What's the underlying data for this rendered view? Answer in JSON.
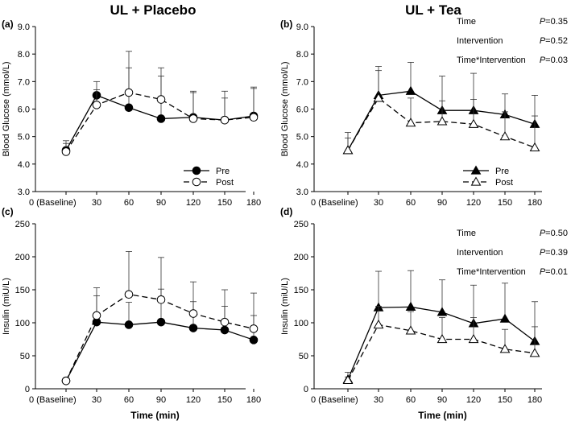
{
  "titles": {
    "left": "UL + Placebo",
    "right": "UL + Tea"
  },
  "x_categories": [
    "0 (Baseline)",
    "30",
    "60",
    "90",
    "120",
    "150",
    "180"
  ],
  "chart_data": [
    {
      "panel": "(a)",
      "type": "line",
      "ylabel": "Blood Glucose (mmol/L)",
      "xlabel": "",
      "ylim": [
        3.0,
        9.0
      ],
      "yticks": [
        "3.0",
        "4.0",
        "5.0",
        "6.0",
        "7.0",
        "8.0",
        "9.0"
      ],
      "legend": {
        "placement": "bottom-right",
        "entries": [
          "Pre",
          "Post"
        ]
      },
      "stats": [],
      "series": [
        {
          "name": "Pre",
          "marker": "filled-circle",
          "line": "solid",
          "values": [
            4.5,
            6.5,
            6.05,
            5.65,
            5.7,
            5.6,
            5.75
          ],
          "err": [
            0.25,
            0.5,
            1.45,
            1.55,
            0.95,
            0.8,
            1.05
          ]
        },
        {
          "name": "Post",
          "marker": "open-circle",
          "line": "dashed",
          "values": [
            4.45,
            6.15,
            6.6,
            6.35,
            5.65,
            5.6,
            5.7
          ],
          "err": [
            0.4,
            0.55,
            1.5,
            1.15,
            0.95,
            1.05,
            1.05
          ]
        }
      ]
    },
    {
      "panel": "(b)",
      "type": "line",
      "ylabel": "Blood Glucose (mmol/L)",
      "xlabel": "",
      "ylim": [
        3.0,
        9.0
      ],
      "yticks": [
        "3.0",
        "4.0",
        "5.0",
        "6.0",
        "7.0",
        "8.0",
        "9.0"
      ],
      "legend": {
        "placement": "bottom-right",
        "entries": [
          "Pre",
          "Post"
        ]
      },
      "stats": [
        {
          "label": "Time",
          "p_letter": "P",
          "p_value": "=0.35"
        },
        {
          "label": "Intervention",
          "p_letter": "P",
          "p_value": "=0.52"
        },
        {
          "label": "Time*Intervention",
          "p_letter": "P",
          "p_value": "=0.03"
        }
      ],
      "series": [
        {
          "name": "Pre",
          "marker": "filled-triangle",
          "line": "solid",
          "values": [
            4.5,
            6.5,
            6.65,
            5.95,
            5.95,
            5.8,
            5.45
          ],
          "err": [
            0.65,
            1.05,
            1.05,
            1.25,
            1.35,
            0.75,
            1.05
          ]
        },
        {
          "name": "Post",
          "marker": "open-triangle",
          "line": "dashed",
          "values": [
            4.5,
            6.4,
            5.5,
            5.55,
            5.45,
            5.0,
            4.6
          ],
          "err": [
            0.45,
            1.0,
            0.9,
            0.75,
            0.9,
            0.9,
            1.15
          ]
        }
      ]
    },
    {
      "panel": "(c)",
      "type": "line",
      "ylabel": "Insulin (miU/L)",
      "xlabel": "Time (min)",
      "ylim": [
        0,
        250
      ],
      "yticks": [
        "0",
        "50",
        "100",
        "150",
        "200",
        "250"
      ],
      "legend": null,
      "stats": [],
      "series": [
        {
          "name": "Pre",
          "marker": "filled-circle",
          "line": "solid",
          "values": [
            12,
            101,
            97,
            101,
            92,
            89,
            74
          ],
          "err": [
            4,
            40,
            34,
            50,
            40,
            36,
            37
          ]
        },
        {
          "name": "Post",
          "marker": "open-circle",
          "line": "dashed",
          "values": [
            12,
            111,
            143,
            135,
            114,
            101,
            91
          ],
          "err": [
            4,
            42,
            65,
            64,
            48,
            49,
            54
          ]
        }
      ]
    },
    {
      "panel": "(d)",
      "type": "line",
      "ylabel": "Insulin (miU/L)",
      "xlabel": "Time (min)",
      "ylim": [
        0,
        250
      ],
      "yticks": [
        "0",
        "50",
        "100",
        "150",
        "200",
        "250"
      ],
      "legend": null,
      "stats": [
        {
          "label": "Time",
          "p_letter": "P",
          "p_value": "=0.50"
        },
        {
          "label": "Intervention",
          "p_letter": "P",
          "p_value": "=0.39"
        },
        {
          "label": "Time*Intervention",
          "p_letter": "P",
          "p_value": "=0.01"
        }
      ],
      "series": [
        {
          "name": "Pre",
          "marker": "filled-triangle",
          "line": "solid",
          "values": [
            14,
            123,
            124,
            116,
            99,
            106,
            72
          ],
          "err": [
            11,
            55,
            55,
            49,
            58,
            54,
            60
          ]
        },
        {
          "name": "Post",
          "marker": "open-triangle",
          "line": "dashed",
          "values": [
            13,
            97,
            88,
            75,
            75,
            60,
            54
          ],
          "err": [
            5,
            28,
            29,
            33,
            33,
            30,
            40
          ]
        }
      ]
    }
  ]
}
